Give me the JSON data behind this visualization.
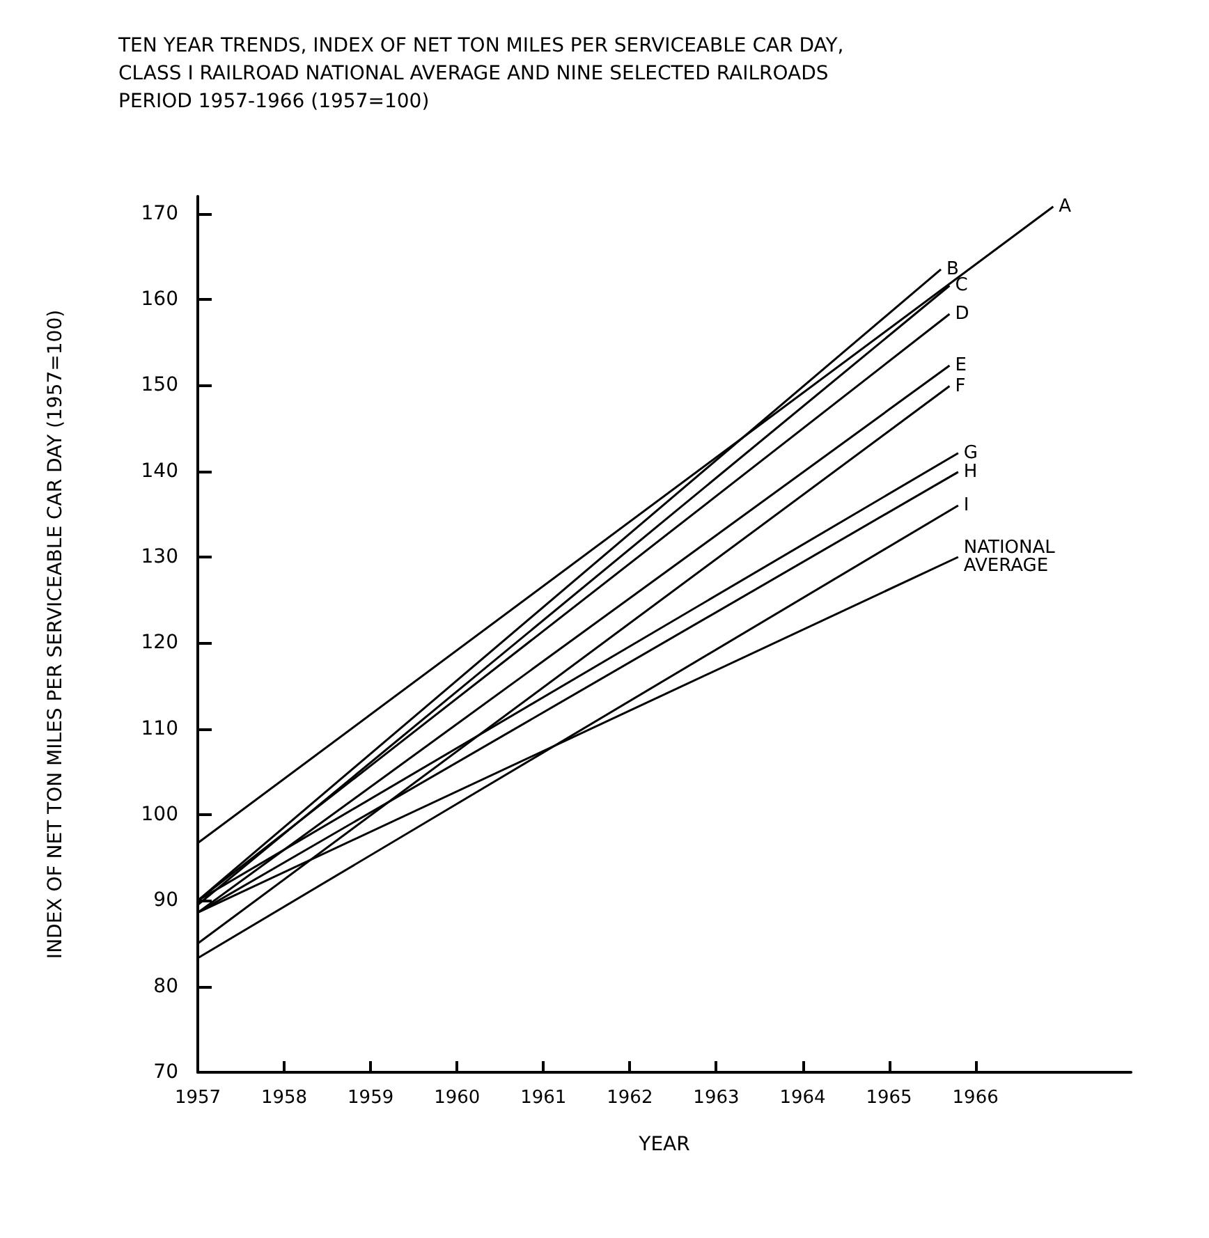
{
  "chart_data": {
    "type": "line",
    "title": "TEN YEAR TRENDS, INDEX OF NET TON MILES PER SERVICEABLE CAR DAY, CLASS I RAILROAD NATIONAL AVERAGE AND NINE SELECTED RAILROADS  PERIOD 1957-1966 (1957=100)",
    "xlabel": "YEAR",
    "ylabel": "INDEX OF NET TON MILES PER SERVICEABLE CAR DAY (1957=100)",
    "xlim": [
      1957,
      1967.8
    ],
    "xticks": [
      1957,
      1958,
      1959,
      1960,
      1961,
      1962,
      1963,
      1964,
      1965,
      1966
    ],
    "ylim": [
      70,
      172
    ],
    "yticks": [
      70,
      80,
      90,
      100,
      110,
      120,
      130,
      140,
      150,
      160,
      170
    ],
    "grid": false,
    "legend": false,
    "marker": "none",
    "line_style": "solid",
    "series": [
      {
        "name": "A",
        "color": "#000000",
        "x": [
          1957,
          1966.9
        ],
        "values": [
          96.7,
          170.8
        ]
      },
      {
        "name": "B",
        "color": "#000000",
        "x": [
          1957,
          1965.6
        ],
        "values": [
          90,
          163.5
        ]
      },
      {
        "name": "C",
        "color": "#000000",
        "x": [
          1957,
          1965.7
        ],
        "values": [
          89.5,
          161.6
        ]
      },
      {
        "name": "D",
        "color": "#000000",
        "x": [
          1957,
          1965.7
        ],
        "values": [
          90,
          158.3
        ]
      },
      {
        "name": "E",
        "color": "#000000",
        "x": [
          1957,
          1965.7
        ],
        "values": [
          88.6,
          152.3
        ]
      },
      {
        "name": "F",
        "color": "#000000",
        "x": [
          1957,
          1965.7
        ],
        "values": [
          85,
          149.9
        ]
      },
      {
        "name": "G",
        "color": "#000000",
        "x": [
          1957,
          1965.8
        ],
        "values": [
          90,
          142.1
        ]
      },
      {
        "name": "H",
        "color": "#000000",
        "x": [
          1957,
          1965.8
        ],
        "values": [
          88.6,
          139.9
        ]
      },
      {
        "name": "I",
        "color": "#000000",
        "x": [
          1957,
          1965.8
        ],
        "values": [
          83.3,
          136
        ]
      },
      {
        "name": "NATIONAL AVERAGE",
        "color": "#000000",
        "x": [
          1957,
          1965.8
        ],
        "values": [
          88.6,
          130
        ]
      }
    ]
  }
}
